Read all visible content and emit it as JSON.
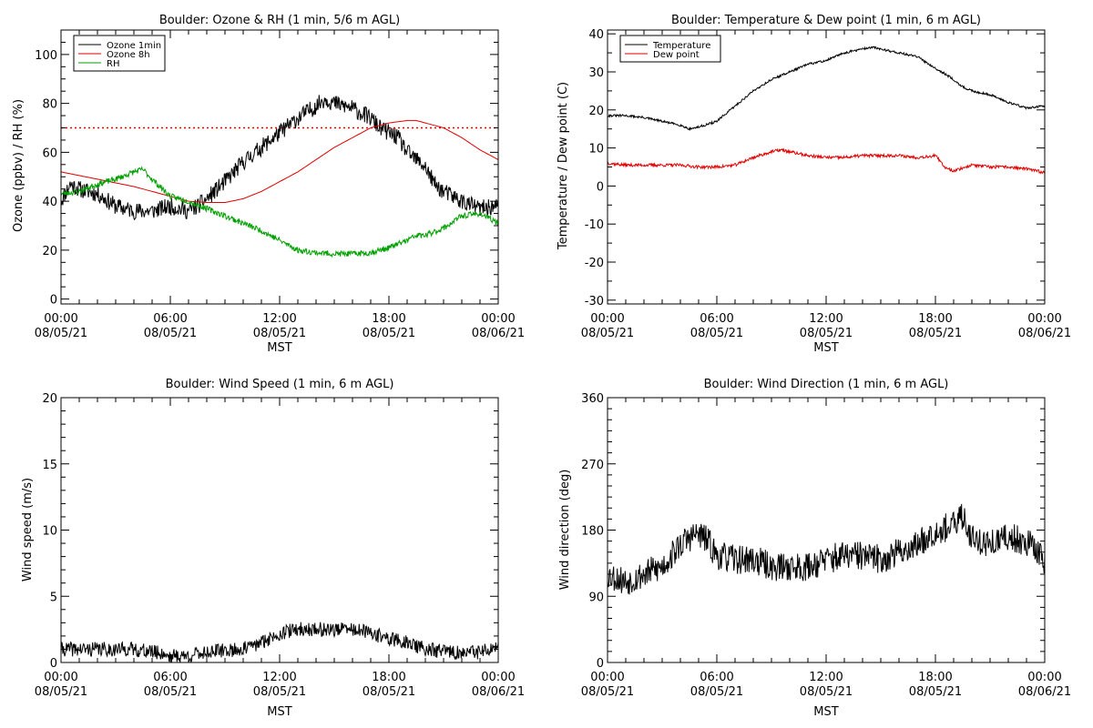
{
  "colors": {
    "black": "#000000",
    "red": "#e00000",
    "green": "#00a000",
    "background": "#ffffff"
  },
  "chart_data": [
    {
      "id": "ozone_rh",
      "type": "line",
      "title": "Boulder: Ozone & RH (1 min, 5/6 m AGL)",
      "xlabel": "MST",
      "ylabel": "Ozone (ppbv) / RH (%)",
      "ylim": [
        -2,
        110
      ],
      "yticks": [
        0,
        20,
        40,
        60,
        80,
        100
      ],
      "yminor_step": 5,
      "xlim": [
        0,
        24
      ],
      "xtick_hours": [
        0,
        6,
        12,
        18,
        24
      ],
      "xticks_top": [
        "00:00",
        "06:00",
        "12:00",
        "18:00",
        "00:00"
      ],
      "xticks_bottom": [
        "08/05/21",
        "08/05/21",
        "08/05/21",
        "08/05/21",
        "08/06/21"
      ],
      "xminor_step_hours": 1,
      "legend": {
        "position": "top-left",
        "entries": [
          "Ozone 1min",
          "Ozone 8h",
          "RH"
        ]
      },
      "reference_lines": [
        {
          "y": 70,
          "color": "#e00000",
          "style": "dotted"
        }
      ],
      "series": [
        {
          "name": "Ozone 1min",
          "color": "#000000",
          "noise": 3.5,
          "seed": 11,
          "x": [
            0,
            0.5,
            1,
            2,
            3,
            4,
            5,
            6,
            7,
            7.5,
            8,
            9,
            10,
            11,
            12,
            13,
            14,
            14.5,
            15,
            16,
            17,
            17.5,
            18,
            18.5,
            19,
            20,
            20.5,
            21,
            22,
            23,
            24
          ],
          "y": [
            40,
            47,
            45,
            43,
            38,
            36,
            36,
            38,
            36,
            38,
            41,
            48,
            56,
            62,
            68,
            74,
            79,
            82,
            80,
            78,
            74,
            70,
            68,
            66,
            60,
            54,
            47,
            44,
            40,
            37,
            38
          ]
        },
        {
          "name": "Ozone 8h",
          "color": "#e00000",
          "noise": 0,
          "seed": 0,
          "x": [
            0,
            2,
            4,
            6,
            7,
            8,
            9,
            10,
            11,
            12,
            13,
            14,
            15,
            16,
            17,
            18,
            19,
            19.5,
            20,
            21,
            22,
            23,
            24
          ],
          "y": [
            52,
            49,
            46,
            42,
            40,
            39.5,
            39.5,
            41,
            44,
            48,
            52,
            57,
            62,
            66,
            70,
            72,
            73,
            73,
            72,
            70,
            66,
            61,
            57
          ]
        },
        {
          "name": "RH",
          "color": "#00a000",
          "noise": 1.2,
          "seed": 23,
          "x": [
            0,
            1,
            2,
            3,
            4,
            4.5,
            5,
            6,
            7,
            8,
            9,
            10,
            11,
            12,
            13,
            14,
            15,
            16,
            17,
            17.5,
            18,
            19,
            19.5,
            20,
            21,
            22,
            23,
            24
          ],
          "y": [
            43,
            44,
            47,
            49,
            52,
            53,
            49,
            42,
            40,
            37,
            34,
            31,
            28,
            24,
            20,
            19,
            18.5,
            18.5,
            19,
            20,
            21,
            24,
            26,
            26,
            29,
            34,
            35,
            31
          ]
        }
      ]
    },
    {
      "id": "temp_dew",
      "type": "line",
      "title": "Boulder: Temperature & Dew point (1 min, 6 m AGL)",
      "xlabel": "MST",
      "ylabel": "Temperature / Dew point (C)",
      "ylim": [
        -31,
        41
      ],
      "yticks": [
        -30,
        -20,
        -10,
        0,
        10,
        20,
        30,
        40
      ],
      "yminor_step": 5,
      "xlim": [
        0,
        24
      ],
      "xtick_hours": [
        0,
        6,
        12,
        18,
        24
      ],
      "xticks_top": [
        "00:00",
        "06:00",
        "12:00",
        "18:00",
        "00:00"
      ],
      "xticks_bottom": [
        "08/05/21",
        "08/05/21",
        "08/05/21",
        "08/05/21",
        "08/06/21"
      ],
      "xminor_step_hours": 1,
      "legend": {
        "position": "top-left",
        "entries": [
          "Temperature",
          "Dew point"
        ]
      },
      "reference_lines": [],
      "series": [
        {
          "name": "Temperature",
          "color": "#000000",
          "noise": 0.3,
          "seed": 31,
          "x": [
            0,
            1,
            2,
            3,
            4,
            4.5,
            5,
            6,
            7,
            8,
            9,
            10,
            11,
            12,
            13,
            14,
            14.5,
            15,
            16,
            17,
            18,
            19,
            19.5,
            20,
            21,
            22,
            23,
            24
          ],
          "y": [
            18.5,
            18.5,
            18,
            17,
            16,
            15,
            15.5,
            17,
            21,
            25,
            28,
            30,
            32,
            33,
            35,
            36,
            36.5,
            36,
            35,
            34,
            31,
            28,
            26,
            25,
            24,
            22,
            20.5,
            21
          ]
        },
        {
          "name": "Dew point",
          "color": "#e00000",
          "noise": 0.4,
          "seed": 37,
          "x": [
            0,
            1,
            2,
            3,
            4,
            5,
            6,
            7,
            8,
            9,
            9.5,
            10,
            11,
            12,
            13,
            14,
            15,
            16,
            17,
            18,
            18.5,
            19,
            20,
            21,
            22,
            23,
            24
          ],
          "y": [
            6,
            5.5,
            5.5,
            5.5,
            5.5,
            5,
            5,
            5.5,
            7.5,
            9,
            9.5,
            9,
            8,
            7.5,
            7.5,
            8,
            8,
            8,
            7.5,
            8,
            5,
            4,
            5.5,
            5,
            5,
            4.5,
            3.5
          ]
        }
      ]
    },
    {
      "id": "wind_speed",
      "type": "line",
      "title": "Boulder: Wind Speed (1 min, 6 m AGL)",
      "xlabel": "MST",
      "ylabel": "Wind speed (m/s)",
      "ylim": [
        0,
        20
      ],
      "yticks": [
        0,
        5,
        10,
        15,
        20
      ],
      "yminor_step": 1,
      "xlim": [
        0,
        24
      ],
      "xtick_hours": [
        0,
        6,
        12,
        18,
        24
      ],
      "xticks_top": [
        "00:00",
        "06:00",
        "12:00",
        "18:00",
        "00:00"
      ],
      "xticks_bottom": [
        "08/05/21",
        "08/05/21",
        "08/05/21",
        "08/05/21",
        "08/06/21"
      ],
      "xminor_step_hours": 1,
      "legend": null,
      "reference_lines": [],
      "series": [
        {
          "name": "Wind speed",
          "color": "#000000",
          "noise": 0.55,
          "seed": 41,
          "x": [
            0,
            2,
            4,
            5.5,
            6,
            7,
            8,
            10,
            11,
            12,
            13,
            15,
            16,
            17,
            18,
            19,
            20,
            22,
            23,
            24
          ],
          "y": [
            1,
            1,
            1,
            0.7,
            0.5,
            0.5,
            0.8,
            1,
            1.5,
            2.2,
            2.5,
            2.5,
            2.5,
            2.2,
            1.8,
            1.5,
            1,
            0.7,
            0.8,
            1
          ]
        }
      ]
    },
    {
      "id": "wind_dir",
      "type": "line",
      "title": "Boulder: Wind Direction (1 min, 6 m AGL)",
      "xlabel": "MST",
      "ylabel": "Wind direction (deg)",
      "ylim": [
        0,
        360
      ],
      "yticks": [
        0,
        90,
        180,
        270,
        360
      ],
      "yminor_step": 15,
      "xlim": [
        0,
        24
      ],
      "xtick_hours": [
        0,
        6,
        12,
        18,
        24
      ],
      "xticks_top": [
        "00:00",
        "06:00",
        "12:00",
        "18:00",
        "00:00"
      ],
      "xticks_bottom": [
        "08/05/21",
        "08/05/21",
        "08/05/21",
        "08/05/21",
        "08/06/21"
      ],
      "xminor_step_hours": 1,
      "legend": null,
      "reference_lines": [],
      "series": [
        {
          "name": "Wind direction",
          "color": "#000000",
          "noise": 20,
          "seed": 53,
          "x": [
            0,
            1,
            2,
            3,
            4,
            4.5,
            5,
            5.5,
            6,
            7,
            8,
            9,
            10,
            11,
            12,
            13,
            14,
            15,
            16,
            17,
            17.5,
            18,
            19,
            19.5,
            20,
            21,
            22,
            23,
            24
          ],
          "y": [
            120,
            110,
            120,
            130,
            160,
            170,
            175,
            165,
            145,
            140,
            140,
            130,
            130,
            130,
            140,
            145,
            145,
            140,
            150,
            160,
            170,
            180,
            185,
            200,
            170,
            160,
            170,
            165,
            140
          ]
        }
      ]
    }
  ]
}
